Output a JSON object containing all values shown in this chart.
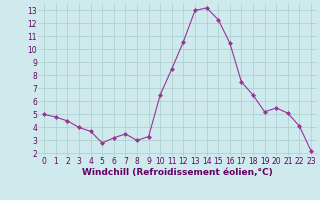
{
  "x": [
    0,
    1,
    2,
    3,
    4,
    5,
    6,
    7,
    8,
    9,
    10,
    11,
    12,
    13,
    14,
    15,
    16,
    17,
    18,
    19,
    20,
    21,
    22,
    23
  ],
  "y": [
    5.0,
    4.8,
    4.5,
    4.0,
    3.7,
    2.8,
    3.2,
    3.5,
    3.0,
    3.3,
    6.5,
    8.5,
    10.6,
    13.0,
    13.2,
    12.3,
    10.5,
    7.5,
    6.5,
    5.2,
    5.5,
    5.1,
    4.1,
    2.2
  ],
  "line_color": "#993399",
  "marker": "D",
  "marker_size": 2,
  "bg_color": "#ceeaed",
  "grid_color": "#aacccc",
  "xlabel": "Windchill (Refroidissement éolien,°C)",
  "xlim": [
    -0.5,
    23.5
  ],
  "ylim": [
    1.8,
    13.5
  ],
  "yticks": [
    2,
    3,
    4,
    5,
    6,
    7,
    8,
    9,
    10,
    11,
    12,
    13
  ],
  "xticks": [
    0,
    1,
    2,
    3,
    4,
    5,
    6,
    7,
    8,
    9,
    10,
    11,
    12,
    13,
    14,
    15,
    16,
    17,
    18,
    19,
    20,
    21,
    22,
    23
  ],
  "tick_color": "#660066",
  "label_fontsize": 6.5,
  "tick_fontsize": 5.5
}
